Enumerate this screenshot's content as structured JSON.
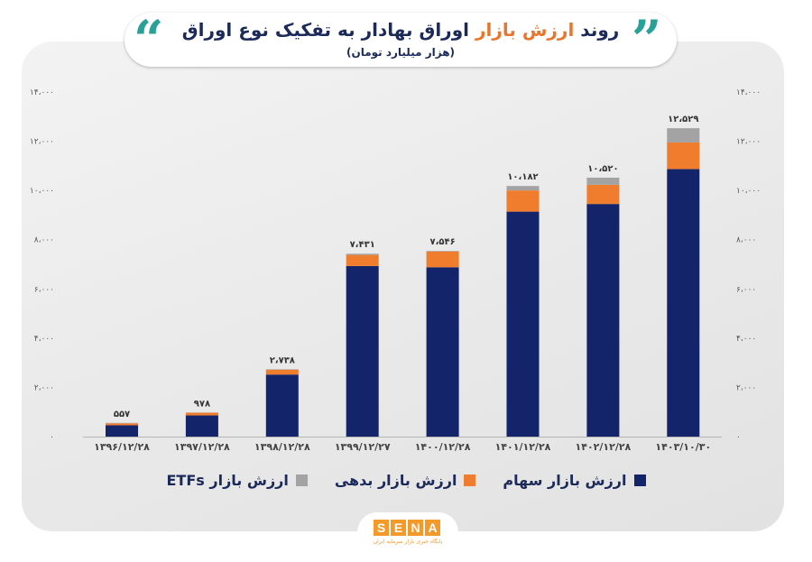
{
  "header": {
    "title_part1": "روند",
    "title_accent": "ارزش بازار",
    "title_part2": "اوراق بهادار به تفکیک نوع اوراق",
    "subtitle": "(هزار میلیارد تومان)",
    "quote_left": "“",
    "quote_right": "”"
  },
  "colors": {
    "stocks": "#14246b",
    "debt": "#ef7d2d",
    "etf": "#a3a3a3",
    "axis_text": "#555555",
    "accent": "#e8762c"
  },
  "chart_data": {
    "type": "bar",
    "stacked": true,
    "categories": [
      "۱۳۹۶/۱۲/۲۸",
      "۱۳۹۷/۱۲/۲۸",
      "۱۳۹۸/۱۲/۲۸",
      "۱۳۹۹/۱۲/۲۷",
      "۱۴۰۰/۱۲/۲۸",
      "۱۴۰۱/۱۲/۲۸",
      "۱۴۰۲/۱۲/۲۸",
      "۱۴۰۳/۱۰/۳۰"
    ],
    "series": [
      {
        "name": "ارزش بازار سهام",
        "values": [
          460,
          860,
          2520,
          6930,
          6880,
          9140,
          9450,
          10870
        ]
      },
      {
        "name": "ارزش بازار بدهی",
        "values": [
          80,
          110,
          200,
          450,
          640,
          860,
          780,
          1080
        ]
      },
      {
        "name": "ارزش بازار ETFs",
        "values": [
          17,
          8,
          18,
          51,
          26,
          182,
          290,
          579
        ]
      }
    ],
    "totals": [
      557,
      978,
      2738,
      7431,
      7546,
      10182,
      10520,
      12529
    ],
    "total_labels": [
      "۵۵۷",
      "۹۷۸",
      "۲،۷۳۸",
      "۷،۴۳۱",
      "۷،۵۴۶",
      "۱۰،۱۸۲",
      "۱۰،۵۲۰",
      "۱۲،۵۲۹"
    ],
    "y_ticks": [
      0,
      2000,
      4000,
      6000,
      8000,
      10000,
      12000,
      14000
    ],
    "y_tick_labels": [
      "۰",
      "۲،۰۰۰",
      "۴،۰۰۰",
      "۶،۰۰۰",
      "۸،۰۰۰",
      "۱۰،۰۰۰",
      "۱۲،۰۰۰",
      "۱۴،۰۰۰"
    ],
    "ylim": [
      0,
      14000
    ],
    "grid": false,
    "legend_position": "bottom"
  },
  "legend": [
    {
      "label": "ارزش بازار سهام",
      "color_key": "stocks"
    },
    {
      "label": "ارزش بازار بدهی",
      "color_key": "debt"
    },
    {
      "label": "ارزش بازار ETFs",
      "color_key": "etf"
    }
  ],
  "logo": {
    "letters": [
      "S",
      "E",
      "N",
      "A"
    ],
    "tagline": "پایگاه خبری بازار سرمایه ایران"
  }
}
